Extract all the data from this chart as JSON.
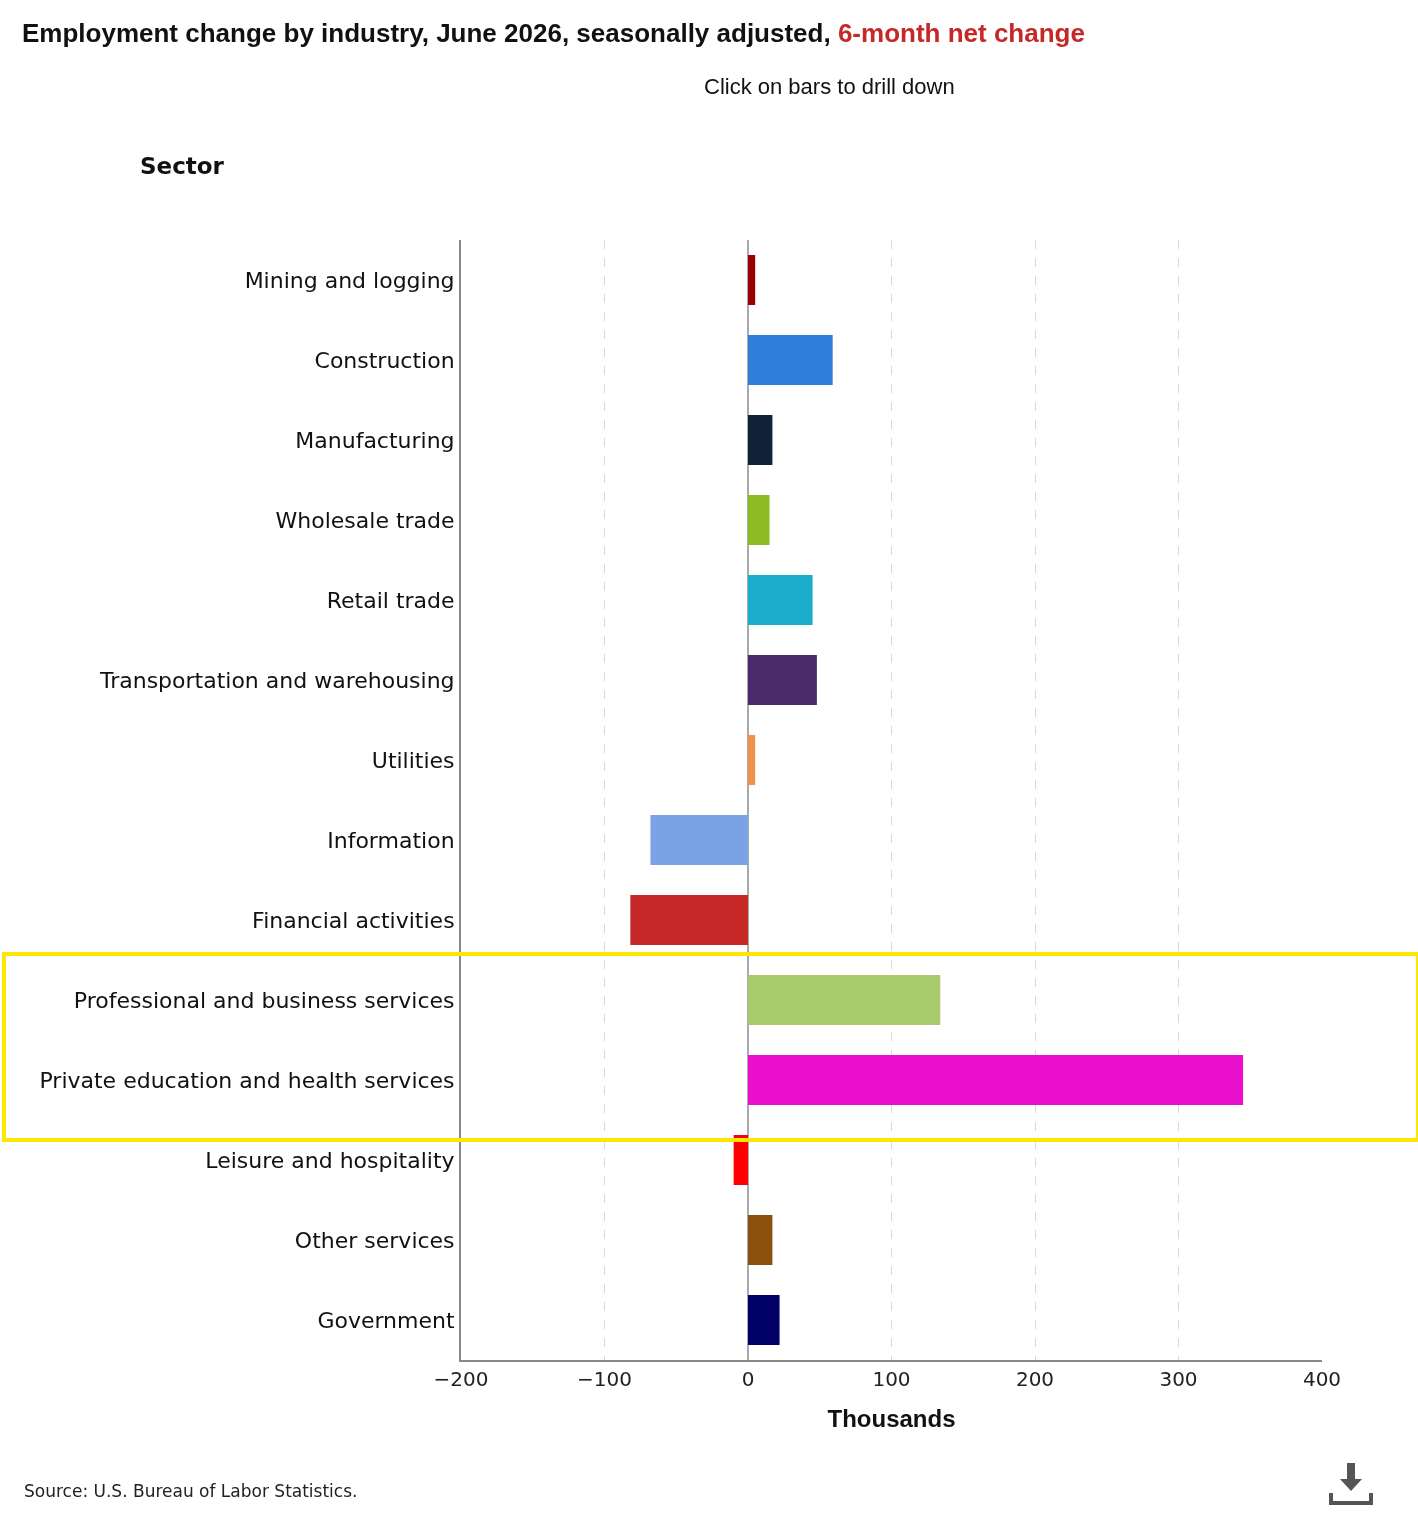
{
  "chart_data": {
    "type": "bar",
    "orientation": "horizontal",
    "title": "Employment change by industry, June 2026, seasonally adjusted, 6-month net change",
    "subtitle": "Click on bars to drill down",
    "ylabel": "Sector",
    "xlabel": "Thousands",
    "categories": [
      "Mining and logging",
      "Construction",
      "Manufacturing",
      "Wholesale trade",
      "Retail trade",
      "Transportation and warehousing",
      "Utilities",
      "Information",
      "Financial activities",
      "Professional and business services",
      "Private education and health services",
      "Leisure and hospitality",
      "Other services",
      "Government"
    ],
    "values": [
      5,
      59,
      17,
      15,
      45,
      48,
      5,
      -68,
      -82,
      134,
      345,
      -10,
      17,
      22
    ],
    "colors": [
      "#990000",
      "#2f7fdb",
      "#0f2238",
      "#8cbc22",
      "#1aaecc",
      "#4b2a6b",
      "#f0924a",
      "#7aa3e5",
      "#c62828",
      "#a8cb6b",
      "#e90fcb",
      "#ff0000",
      "#8b4f0e",
      "#000066"
    ],
    "xlim": [
      -200,
      400
    ],
    "xticks": [
      {
        "value": -200,
        "label": "−200"
      },
      {
        "value": -100,
        "label": "−100"
      },
      0,
      100,
      200,
      300,
      400
    ],
    "grid": "x",
    "legend": false,
    "annotations": [
      "Source: U.S. Bureau of Labor Statistics."
    ]
  }
}
